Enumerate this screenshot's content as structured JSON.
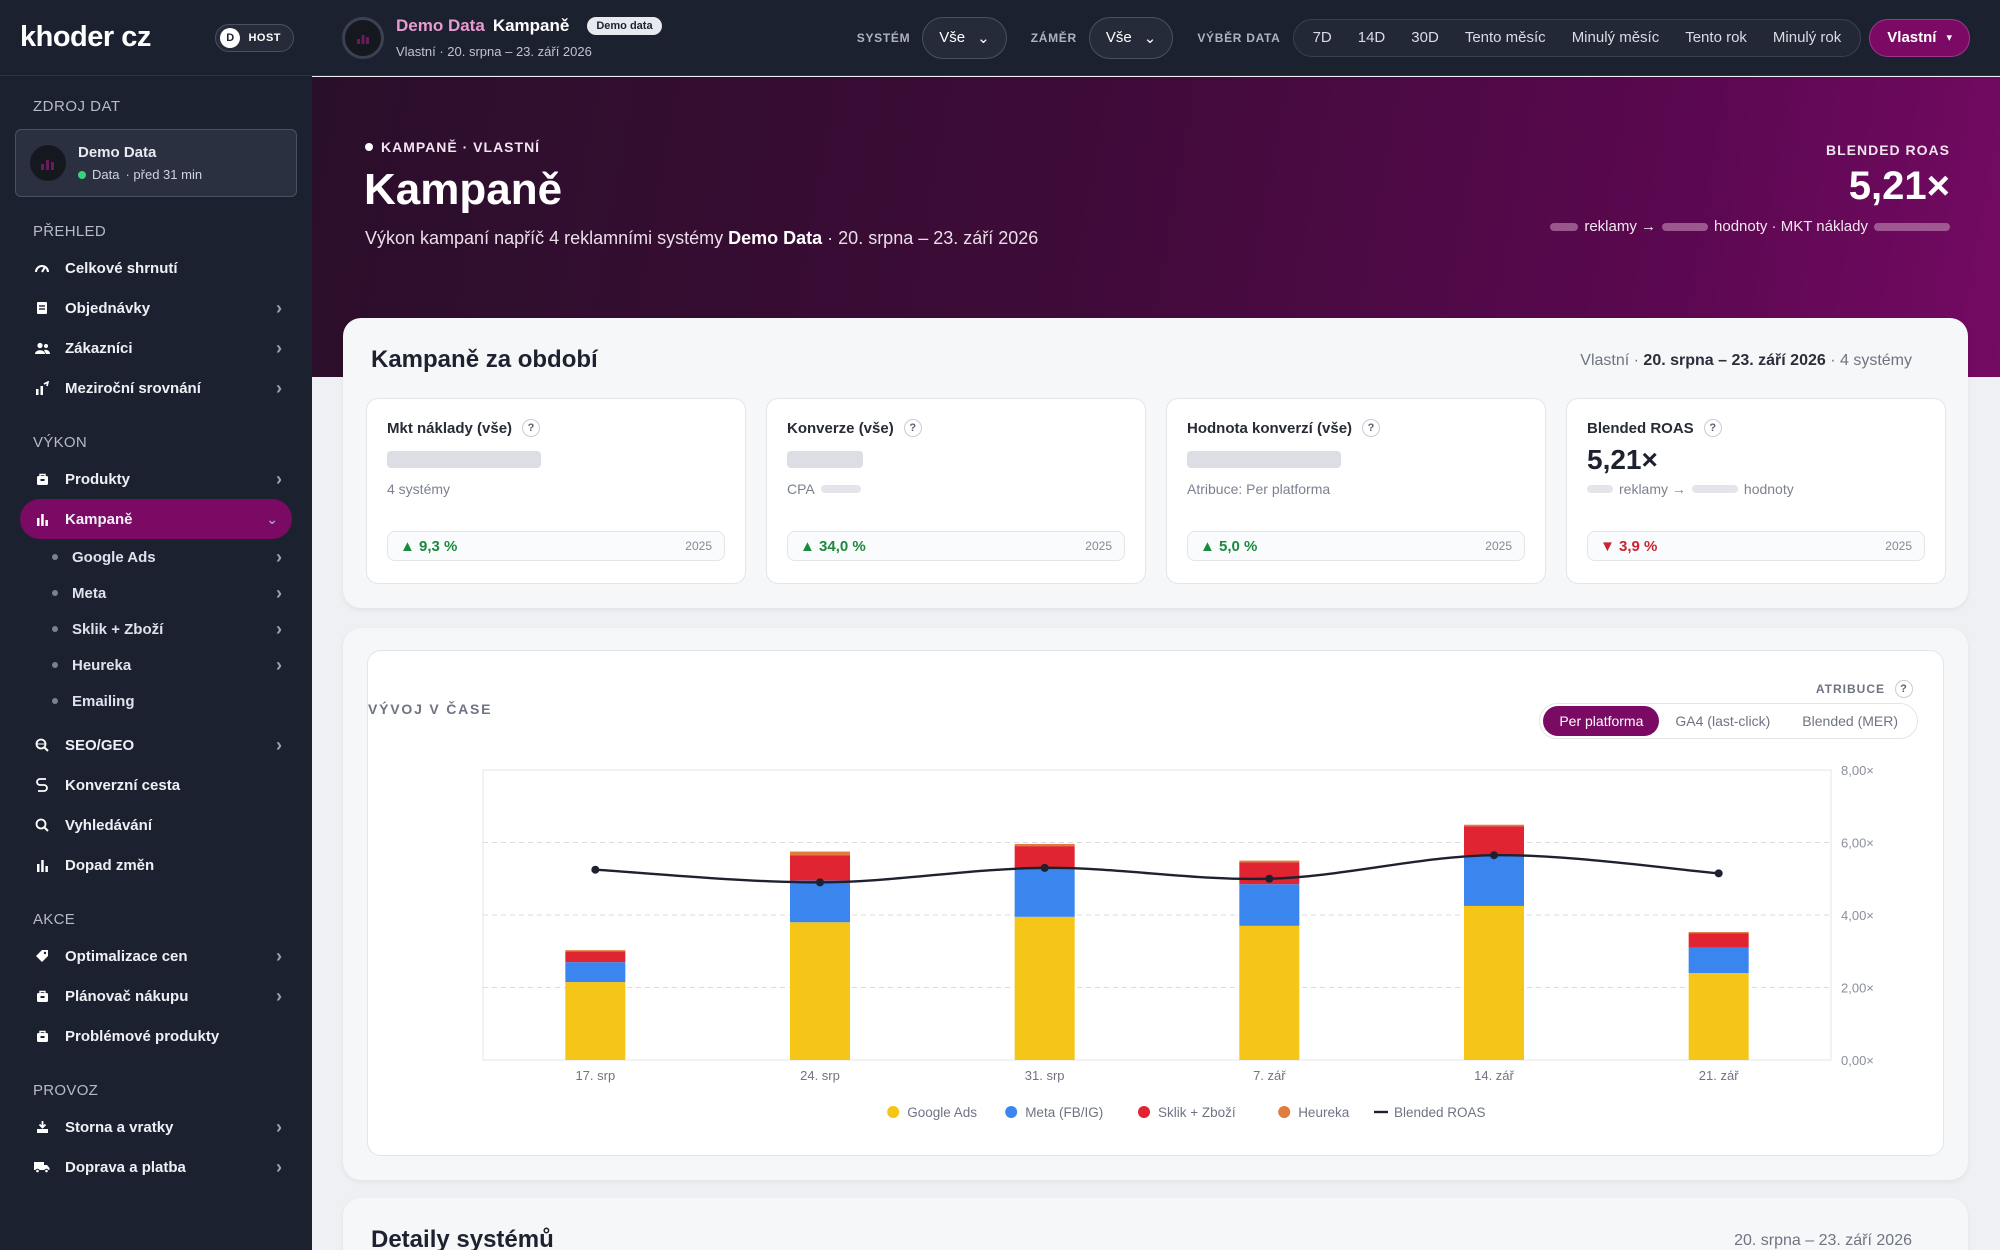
{
  "brand": {
    "logo": "khoder cz",
    "host_initial": "D",
    "host_label": "HOST"
  },
  "sidebar": {
    "source_label": "ZDROJ DAT",
    "source_name": "Demo Data",
    "source_status": "Data",
    "source_updated": "· před 31 min",
    "sections": [
      {
        "title": "PŘEHLED",
        "items": [
          {
            "label": "Celkové shrnutí",
            "icon": "gauge-icon",
            "chevron": false
          },
          {
            "label": "Objednávky",
            "icon": "receipt-icon",
            "chevron": true
          },
          {
            "label": "Zákazníci",
            "icon": "users-icon",
            "chevron": true
          },
          {
            "label": "Meziroční srovnání",
            "icon": "trend-icon",
            "chevron": true
          }
        ]
      },
      {
        "title": "VÝKON",
        "items": [
          {
            "label": "Produkty",
            "icon": "box-icon",
            "chevron": true
          },
          {
            "label": "Kampaně",
            "icon": "bar-chart-icon",
            "chevron": true,
            "active": true
          }
        ]
      }
    ],
    "campaign_sub": [
      {
        "label": "Google Ads",
        "chevron": true
      },
      {
        "label": "Meta",
        "chevron": true
      },
      {
        "label": "Sklik + Zboží",
        "chevron": true
      },
      {
        "label": "Heureka",
        "chevron": true
      },
      {
        "label": "Emailing",
        "chevron": false
      }
    ],
    "after_sub": [
      {
        "label": "SEO/GEO",
        "icon": "search-globe-icon",
        "chevron": true
      },
      {
        "label": "Konverzní cesta",
        "icon": "path-icon",
        "chevron": false
      },
      {
        "label": "Vyhledávání",
        "icon": "search-icon",
        "chevron": false
      },
      {
        "label": "Dopad změn",
        "icon": "bar-chart-icon",
        "chevron": false
      }
    ],
    "sections2": [
      {
        "title": "AKCE",
        "items": [
          {
            "label": "Optimalizace cen",
            "icon": "tag-icon",
            "chevron": true
          },
          {
            "label": "Plánovač nákupu",
            "icon": "box-icon",
            "chevron": true
          },
          {
            "label": "Problémové produkty",
            "icon": "box-icon",
            "chevron": false
          }
        ]
      },
      {
        "title": "PROVOZ",
        "items": [
          {
            "label": "Storna a vratky",
            "icon": "return-icon",
            "chevron": true
          },
          {
            "label": "Doprava a platba",
            "icon": "truck-icon",
            "chevron": true
          }
        ]
      }
    ]
  },
  "topbar": {
    "demo": "Demo Data",
    "page": "Kampaně",
    "badge": "Demo data",
    "subtitle": "Vlastní · 20. srpna – 23. září 2026",
    "system_label": "SYSTÉM",
    "system_value": "Vše",
    "zamer_label": "ZÁMĚR",
    "zamer_value": "Vše",
    "range_label": "VÝBĚR DATA",
    "ranges": [
      "7D",
      "14D",
      "30D",
      "Tento měsíc",
      "Minulý měsíc",
      "Tento rok",
      "Minulý rok"
    ],
    "custom": "Vlastní"
  },
  "hero": {
    "kicker": "KAMPANĚ · VLASTNÍ",
    "title": "Kampaně",
    "desc_prefix": "Výkon kampaní napříč 4 reklamními systémy ",
    "desc_bold": "Demo Data",
    "desc_suffix": " · 20. srpna – 23. září 2026",
    "roas_label": "BLENDED ROAS",
    "roas_value": "5,21×",
    "formula_a": "reklamy →",
    "formula_b": "hodnoty · MKT náklady"
  },
  "summary": {
    "title": "Kampaně za období",
    "meta_prefix": "Vlastní · ",
    "meta_bold": "20. srpna – 23. září 2026",
    "meta_suffix": " · 4 systémy",
    "kpis": [
      {
        "title": "Mkt náklady (vše)",
        "sub": "4 systémy",
        "delta": "9,3 %",
        "direction": "up",
        "year": "2025"
      },
      {
        "title": "Konverze (vše)",
        "sub": "CPA",
        "delta": "34,0 %",
        "direction": "up",
        "year": "2025"
      },
      {
        "title": "Hodnota konverzí (vše)",
        "sub": "Atribuce: Per platforma",
        "delta": "5,0 %",
        "direction": "up",
        "year": "2025"
      },
      {
        "title": "Blended ROAS",
        "value": "5,21×",
        "sub_a": "reklamy →",
        "sub_b": "hodnoty",
        "delta": "3,9 %",
        "direction": "down",
        "year": "2025"
      }
    ]
  },
  "chart_section": {
    "heading": "VÝVOJ V ČASE",
    "attr_label": "ATRIBUCE",
    "attr_options": [
      "Per platforma",
      "GA4 (last-click)",
      "Blended (MER)"
    ],
    "attr_selected": "Per platforma"
  },
  "chart_data": {
    "type": "bar",
    "stacked": true,
    "categories": [
      "17. srp",
      "24. srp",
      "31. srp",
      "7. zář",
      "14. zář",
      "21. zář"
    ],
    "series": [
      {
        "name": "Google Ads",
        "color": "#f5c518",
        "values": [
          2.15,
          3.8,
          3.95,
          3.7,
          4.25,
          2.4
        ]
      },
      {
        "name": "Meta (FB/IG)",
        "color": "#3a86ee",
        "values": [
          0.55,
          1.15,
          1.3,
          1.15,
          1.4,
          0.7
        ]
      },
      {
        "name": "Sklik + Zboží",
        "color": "#e02431",
        "values": [
          0.3,
          0.7,
          0.65,
          0.6,
          0.8,
          0.4
        ]
      },
      {
        "name": "Heureka",
        "color": "#e07d3a",
        "values": [
          0.03,
          0.1,
          0.06,
          0.05,
          0.04,
          0.03
        ]
      }
    ],
    "line": {
      "name": "Blended ROAS",
      "color": "#1d2130",
      "values": [
        5.25,
        4.9,
        5.3,
        5.0,
        5.65,
        5.15
      ]
    },
    "ylim": [
      0,
      8
    ],
    "yticks": [
      "0,00×",
      "2,00×",
      "4,00×",
      "6,00×",
      "8,00×"
    ],
    "grid": true,
    "legend_position": "bottom-center"
  },
  "details": {
    "title": "Detaily systémů",
    "meta": "20. srpna – 23. září 2026"
  }
}
